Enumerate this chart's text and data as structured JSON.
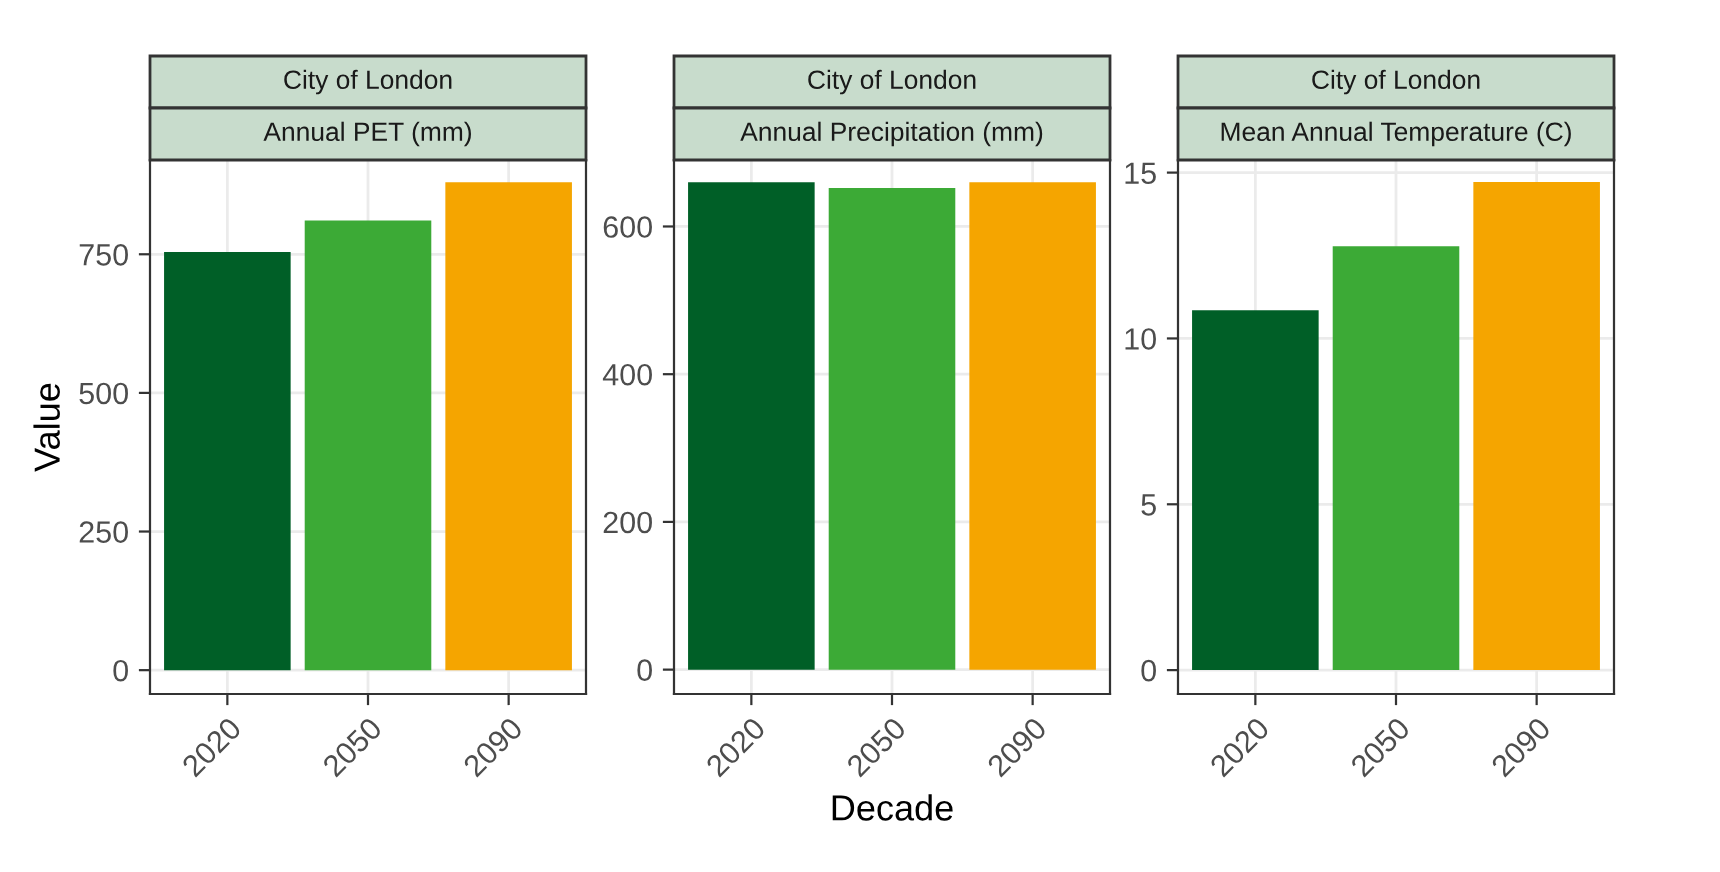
{
  "chart_data": [
    {
      "type": "bar",
      "title": "City of London",
      "subtitle": "Annual PET (mm)",
      "ylabel": "Value",
      "categories": [
        "2020",
        "2050",
        "2090"
      ],
      "values": [
        754,
        811,
        880
      ],
      "colors": [
        "#005f27",
        "#3caa36",
        "#f5a500"
      ],
      "ylim": [
        -43,
        920
      ],
      "yticks": [
        0,
        250,
        500,
        750
      ],
      "grid": true
    },
    {
      "type": "bar",
      "title": "City of London",
      "subtitle": "Annual Precipitation (mm)",
      "xlabel": "Decade",
      "categories": [
        "2020",
        "2050",
        "2090"
      ],
      "values": [
        660,
        652,
        660
      ],
      "colors": [
        "#005f27",
        "#3caa36",
        "#f5a500"
      ],
      "ylim": [
        -33,
        690
      ],
      "yticks": [
        0,
        200,
        400,
        600
      ],
      "grid": true
    },
    {
      "type": "bar",
      "title": "City of London",
      "subtitle": "Mean Annual Temperature (C)",
      "categories": [
        "2020",
        "2050",
        "2090"
      ],
      "values": [
        10.85,
        12.78,
        14.72
      ],
      "colors": [
        "#005f27",
        "#3caa36",
        "#f5a500"
      ],
      "ylim": [
        -0.72,
        15.38
      ],
      "yticks": [
        0,
        5,
        10,
        15
      ],
      "grid": true
    }
  ]
}
